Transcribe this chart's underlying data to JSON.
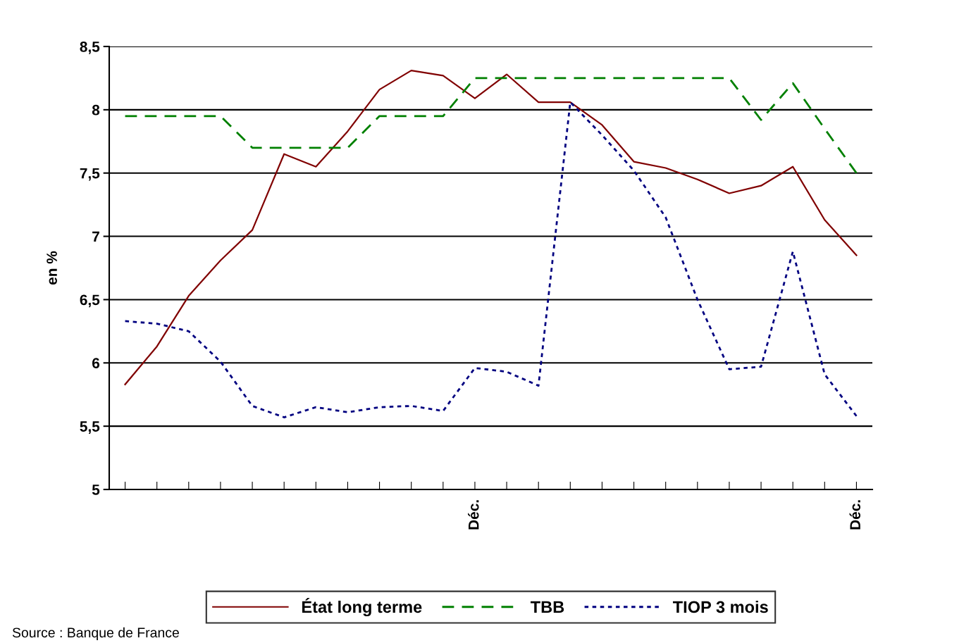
{
  "chart_data": {
    "type": "line",
    "ylabel": "en %",
    "categories": [
      null,
      null,
      null,
      null,
      null,
      null,
      null,
      null,
      null,
      null,
      null,
      "Déc.",
      null,
      null,
      null,
      null,
      null,
      null,
      null,
      null,
      null,
      null,
      null,
      "Déc."
    ],
    "series": [
      {
        "name": "État long terme",
        "color": "#800000",
        "line_style": "solid",
        "values": [
          5.83,
          6.13,
          6.53,
          6.81,
          7.05,
          7.65,
          7.55,
          7.83,
          8.16,
          8.31,
          8.27,
          8.09,
          8.28,
          8.06,
          8.06,
          7.88,
          7.59,
          7.54,
          7.45,
          7.34,
          7.4,
          7.55,
          7.13,
          6.85
        ]
      },
      {
        "name": "TBB",
        "color": "#008000",
        "line_style": "dashed",
        "values": [
          7.95,
          7.95,
          7.95,
          7.95,
          7.7,
          7.7,
          7.7,
          7.7,
          7.95,
          7.95,
          7.95,
          8.25,
          8.25,
          8.25,
          8.25,
          8.25,
          8.25,
          8.25,
          8.25,
          8.25,
          7.92,
          8.21,
          7.85,
          7.5
        ]
      },
      {
        "name": "TIOP 3 mois",
        "color": "#000080",
        "line_style": "dotted",
        "values": [
          6.33,
          6.31,
          6.25,
          6.01,
          5.66,
          5.57,
          5.65,
          5.61,
          5.65,
          5.66,
          5.62,
          5.96,
          5.93,
          5.82,
          8.06,
          7.8,
          7.52,
          7.15,
          6.5,
          5.95,
          5.97,
          6.88,
          5.91,
          5.58
        ]
      }
    ],
    "ylim": [
      5,
      8.5
    ],
    "yticks": [
      {
        "value": 5,
        "label": "5"
      },
      {
        "value": 5.5,
        "label": "5,5"
      },
      {
        "value": 6,
        "label": "6"
      },
      {
        "value": 6.5,
        "label": "6,5"
      },
      {
        "value": 7,
        "label": "7"
      },
      {
        "value": 7.5,
        "label": "7,5"
      },
      {
        "value": 8,
        "label": "8"
      },
      {
        "value": 8.5,
        "label": "8,5"
      }
    ],
    "grid": "y",
    "legend": "bottom",
    "marker": "none",
    "annotations": [
      "Source : Banque de France"
    ]
  }
}
